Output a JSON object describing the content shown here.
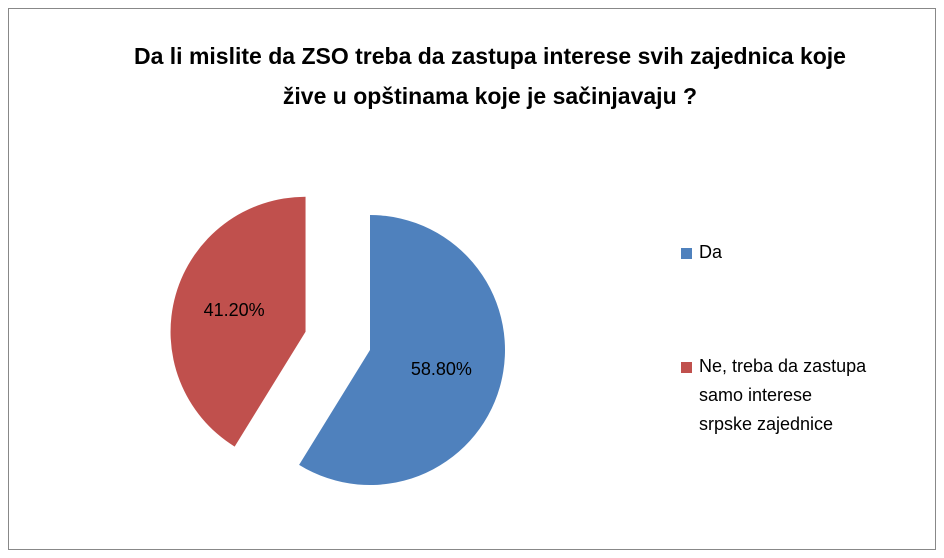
{
  "chart_data": {
    "type": "pie",
    "title": "Da li mislite da ZSO treba da zastupa interese svih zajednica koje žive u opštinama koje je sačinjavaju ?",
    "categories": [
      "Da",
      "Ne, treba da zastupa samo interese srpske zajednice"
    ],
    "values": [
      58.8,
      41.2
    ],
    "value_labels": [
      "58.80%",
      "41.20%"
    ],
    "colors": [
      "#4f81bd",
      "#c0504d"
    ],
    "legend": "right"
  }
}
